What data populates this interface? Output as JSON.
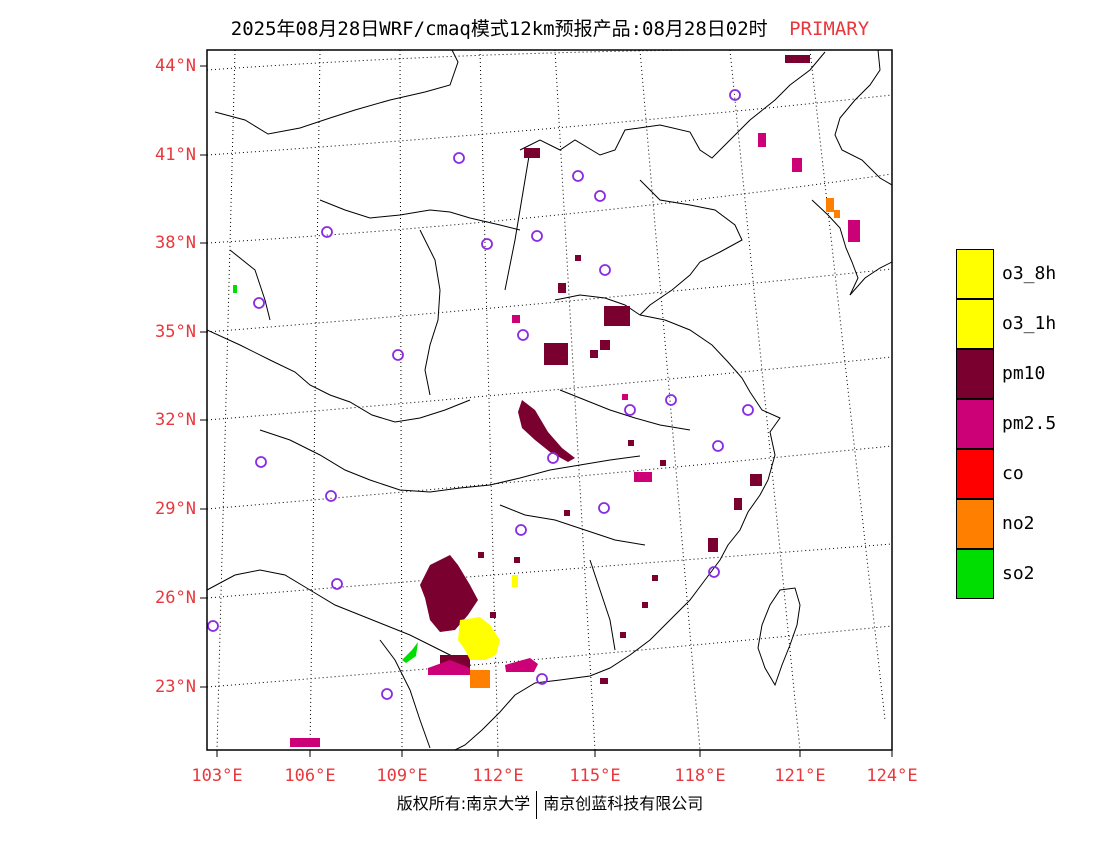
{
  "title": {
    "main": "2025年08月28日WRF/cmaq模式12km预报产品:08月28日02时",
    "badge": "PRIMARY"
  },
  "colors": {
    "axis_label": "#e8383d",
    "o3_8h": "#ffff00",
    "o3_1h": "#ffff00",
    "pm10": "#7a0030",
    "pm25": "#cc0077",
    "co": "#ff0000",
    "no2": "#ff7f00",
    "so2": "#00dd00",
    "city_marker": "#8a2be2"
  },
  "axes": {
    "lat_labels": [
      "44°N",
      "41°N",
      "38°N",
      "35°N",
      "32°N",
      "29°N",
      "26°N",
      "23°N"
    ],
    "lon_labels": [
      "103°E",
      "106°E",
      "109°E",
      "112°E",
      "115°E",
      "118°E",
      "121°E",
      "124°E"
    ]
  },
  "legend": [
    {
      "key": "o3_8h",
      "label": "o3_8h"
    },
    {
      "key": "o3_1h",
      "label": "o3_1h"
    },
    {
      "key": "pm10",
      "label": "pm10"
    },
    {
      "key": "pm25",
      "label": "pm2.5"
    },
    {
      "key": "co",
      "label": "co"
    },
    {
      "key": "no2",
      "label": "no2"
    },
    {
      "key": "so2",
      "label": "so2"
    }
  ],
  "footer": {
    "left": "版权所有:南京大学",
    "right": "南京创蓝科技有限公司"
  }
}
